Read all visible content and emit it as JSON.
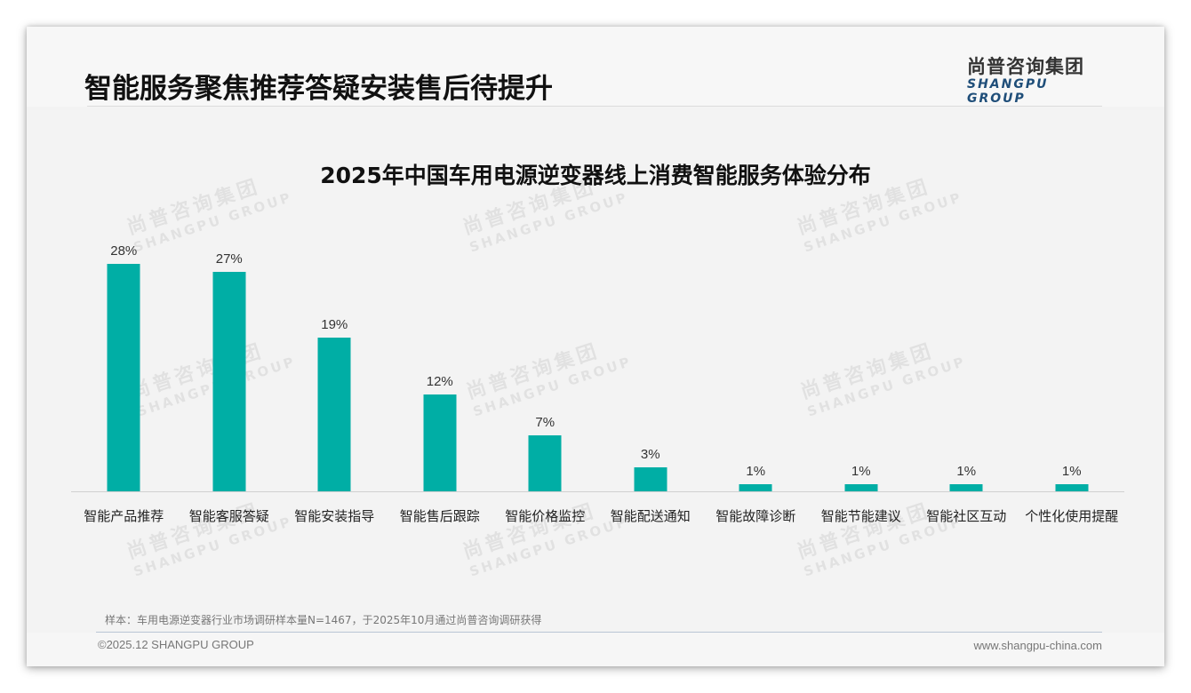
{
  "header": {
    "title": "智能服务聚焦推荐答疑安装售后待提升",
    "logo_cn": "尚普咨询集团",
    "logo_en": "SHANGPU GROUP"
  },
  "watermark": {
    "cn": "尚普咨询集团",
    "en": "SHANGPU GROUP"
  },
  "chart_data": {
    "type": "bar",
    "title": "2025年中国车用电源逆变器线上消费智能服务体验分布",
    "categories": [
      "智能产品推荐",
      "智能客服答疑",
      "智能安装指导",
      "智能售后跟踪",
      "智能价格监控",
      "智能配送通知",
      "智能故障诊断",
      "智能节能建议",
      "智能社区互动",
      "个性化使用提醒"
    ],
    "values": [
      28,
      27,
      19,
      12,
      7,
      3,
      1,
      1,
      1,
      1
    ],
    "value_labels": [
      "28%",
      "27%",
      "19%",
      "12%",
      "7%",
      "3%",
      "1%",
      "1%",
      "1%",
      "1%"
    ],
    "unit": "%",
    "xlabel": "",
    "ylabel": "",
    "grid": false,
    "legend": false,
    "bar_color": "#00aea5"
  },
  "footer": {
    "source_note": "样本：车用电源逆变器行业市场调研样本量N=1467，于2025年10月通过尚普咨询调研获得",
    "copyright": "©2025.12 SHANGPU GROUP",
    "website": "www.shangpu-china.com"
  }
}
